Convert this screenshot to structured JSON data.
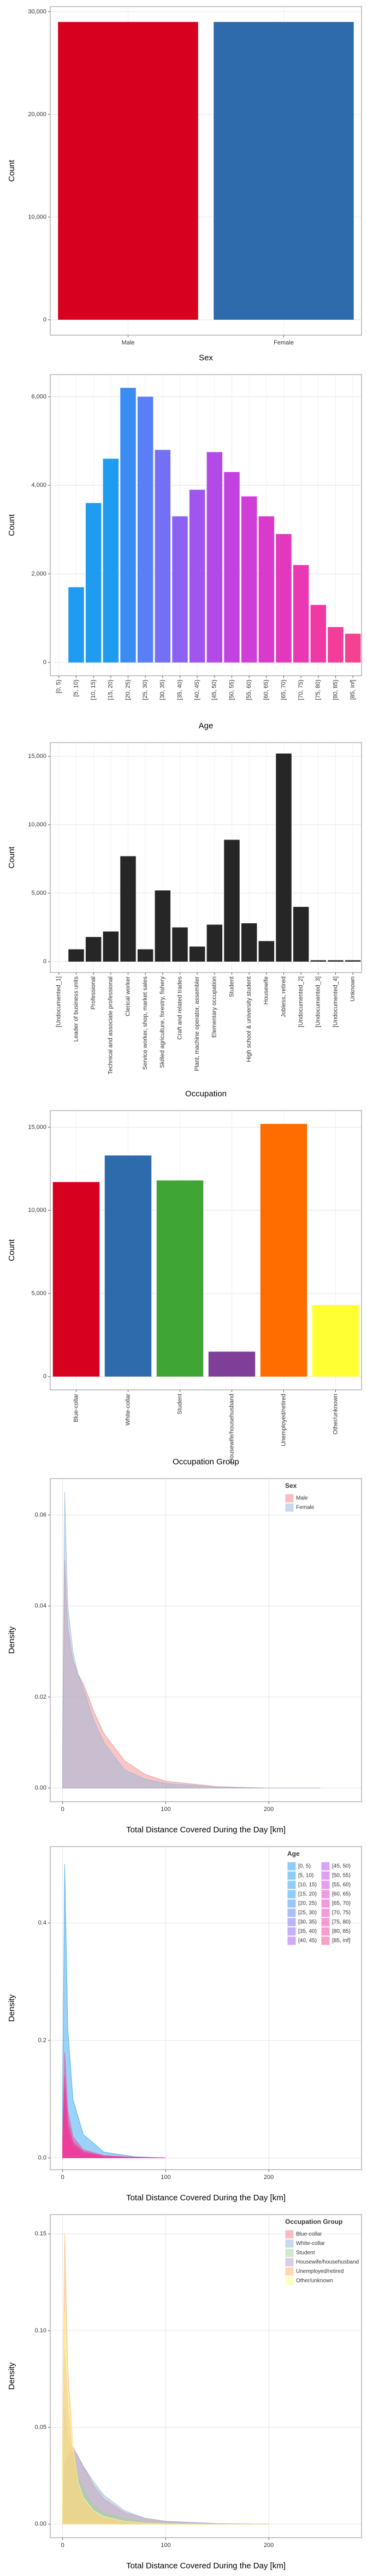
{
  "chart_data": [
    {
      "type": "bar",
      "x_label": "Sex",
      "y_label": "Count",
      "categories": [
        "Male",
        "Female"
      ],
      "values": [
        29000,
        29000
      ],
      "colors": [
        "#d7001f",
        "#2e6bad"
      ],
      "ylim": [
        -1500,
        30500
      ],
      "yticks": [
        0,
        {
          "value": 10000,
          "label": "10,000"
        },
        {
          "value": 20000,
          "label": "20,000"
        },
        {
          "value": 30000,
          "label": "30,000"
        }
      ],
      "grid": true
    },
    {
      "type": "bar",
      "x_label": "Age",
      "y_label": "Count",
      "categories": [
        "[0, 5)",
        "[5, 10)",
        "[10, 15)",
        "[15, 20)",
        "[20, 25)",
        "[25, 30)",
        "[30, 35)",
        "[35, 40)",
        "[40, 45)",
        "[45, 50)",
        "[50, 55)",
        "[55, 60)",
        "[60, 65)",
        "[65, 70)",
        "[70, 75)",
        "[75, 80)",
        "[80, 85)",
        "[85, Inf]"
      ],
      "values": [
        0,
        1700,
        3600,
        4600,
        6200,
        6000,
        4800,
        3300,
        3900,
        4750,
        4300,
        3750,
        3300,
        2900,
        2200,
        1300,
        800,
        650
      ],
      "colors": [
        "#1f9bf0",
        "#1f9bf0",
        "#1f9bf0",
        "#1f9bf0",
        "#3a8cf3",
        "#5a7ef5",
        "#7470f5",
        "#8c62f3",
        "#a055ee",
        "#b24ae8",
        "#c242e0",
        "#cf3ed6",
        "#da3acb",
        "#e338be",
        "#ea38b2",
        "#ef3aa6",
        "#f23d9b",
        "#f44190"
      ],
      "ylim": [
        -300,
        6500
      ],
      "yticks": [
        0,
        {
          "value": 2000,
          "label": "2,000"
        },
        {
          "value": 4000,
          "label": "4,000"
        },
        {
          "value": 6000,
          "label": "6,000"
        }
      ],
      "grid": true
    },
    {
      "type": "bar",
      "x_label": "Occupation",
      "y_label": "Count",
      "categories": [
        "[Undocumented_1]",
        "Leader of business units",
        "Professional",
        "Technical and associate professional",
        "Clerical worker",
        "Service worker, shop, market sales",
        "Skilled agriculture, forestry, fishery",
        "Craft and related trades",
        "Plant, machine operator, assembler",
        "Elementary occupation",
        "Student",
        "High school & university student",
        "Housewife",
        "Jobless, retired",
        "[Undocumented_2]",
        "[Undocumented_3]",
        "[Undocumented_4]",
        "Unknown"
      ],
      "values": [
        0,
        900,
        1800,
        2200,
        7700,
        900,
        5200,
        2500,
        1100,
        2700,
        8900,
        2800,
        1500,
        15200,
        4000,
        100,
        100,
        100
      ],
      "color": "#262626",
      "ylim": [
        -800,
        16000
      ],
      "yticks": [
        0,
        {
          "value": 5000,
          "label": "5,000"
        },
        {
          "value": 10000,
          "label": "10,000"
        },
        {
          "value": 15000,
          "label": "15,000"
        }
      ],
      "grid": true
    },
    {
      "type": "bar",
      "x_label": "Occupation Group",
      "y_label": "Count",
      "categories": [
        "Blue-collar",
        "White-collar",
        "Student",
        "Housewife/househusband",
        "Unemployed/retired",
        "Other/unknown"
      ],
      "values": [
        11700,
        13300,
        11800,
        1500,
        15200,
        4300
      ],
      "colors": [
        "#d7001f",
        "#2e6bad",
        "#3fa535",
        "#7f3f98",
        "#ff6d00",
        "#ffff33"
      ],
      "ylim": [
        -800,
        16000
      ],
      "yticks": [
        0,
        {
          "value": 5000,
          "label": "5,000"
        },
        {
          "value": 10000,
          "label": "10,000"
        },
        {
          "value": 15000,
          "label": "15,000"
        }
      ],
      "grid": true
    },
    {
      "type": "density",
      "x_label": "Total Distance Covered During the Day [km]",
      "y_label": "Density",
      "legend_title": "Sex",
      "x": [
        0,
        2,
        5,
        10,
        15,
        20,
        30,
        40,
        50,
        60,
        80,
        100,
        150,
        200,
        250
      ],
      "series": [
        {
          "name": "Male",
          "color": "#f08080",
          "values": [
            0.008,
            0.05,
            0.035,
            0.028,
            0.025,
            0.023,
            0.017,
            0.012,
            0.009,
            0.006,
            0.003,
            0.0015,
            0.0003,
            0,
            0
          ]
        },
        {
          "name": "Female",
          "color": "#8fb4d9",
          "values": [
            0.01,
            0.065,
            0.04,
            0.03,
            0.025,
            0.022,
            0.015,
            0.01,
            0.007,
            0.004,
            0.002,
            0.001,
            0.0002,
            0,
            0
          ]
        }
      ],
      "xlim": [
        -12,
        290
      ],
      "xticks": [
        0,
        100,
        200
      ],
      "ylim": [
        -0.003,
        0.068
      ],
      "yticks": [
        {
          "value": 0,
          "label": "0.00"
        },
        0.02,
        0.04,
        0.06
      ],
      "grid": true
    },
    {
      "type": "density",
      "x_label": "Total Distance Covered During the Day [km]",
      "y_label": "Density",
      "legend_title": "Age",
      "x": [
        0,
        2,
        5,
        10,
        20,
        40,
        70,
        100
      ],
      "series": [
        {
          "name": "[0, 5)",
          "color": "#1f9bf0",
          "values": [
            0.1,
            0.5,
            0.22,
            0.1,
            0.04,
            0.01,
            0.002,
            0
          ]
        },
        {
          "name": "[5, 10)",
          "color": "#1f9bf0",
          "values": [
            0.024,
            0.12,
            0.054,
            0.024,
            0.01,
            0.002,
            0.001,
            0
          ]
        },
        {
          "name": "[10, 15)",
          "color": "#1f9bf0",
          "values": [
            0.02,
            0.1,
            0.045,
            0.02,
            0.008,
            0.002,
            0.0005,
            0
          ]
        },
        {
          "name": "[15, 20)",
          "color": "#1f9bf0",
          "values": [
            0.018,
            0.09,
            0.04,
            0.018,
            0.007,
            0.002,
            0.0005,
            0
          ]
        },
        {
          "name": "[20, 25)",
          "color": "#3a8cf3",
          "values": [
            0.02,
            0.1,
            0.045,
            0.02,
            0.008,
            0.002,
            0.0005,
            0
          ]
        },
        {
          "name": "[25, 30)",
          "color": "#5a7ef5",
          "values": [
            0.016,
            0.08,
            0.036,
            0.016,
            0.006,
            0.002,
            0.0004,
            0
          ]
        },
        {
          "name": "[30, 35)",
          "color": "#7470f5",
          "values": [
            0.016,
            0.08,
            0.036,
            0.016,
            0.006,
            0.002,
            0.0004,
            0
          ]
        },
        {
          "name": "[35, 40)",
          "color": "#8c62f3",
          "values": [
            0.018,
            0.09,
            0.04,
            0.018,
            0.007,
            0.002,
            0.0005,
            0
          ]
        },
        {
          "name": "[40, 45)",
          "color": "#a055ee",
          "values": [
            0.018,
            0.09,
            0.04,
            0.018,
            0.007,
            0.002,
            0.0005,
            0
          ]
        },
        {
          "name": "[45, 50)",
          "color": "#b24ae8",
          "values": [
            0.016,
            0.08,
            0.036,
            0.016,
            0.006,
            0.002,
            0.0004,
            0
          ]
        },
        {
          "name": "[50, 55)",
          "color": "#c242e0",
          "values": [
            0.016,
            0.08,
            0.036,
            0.016,
            0.006,
            0.002,
            0.0004,
            0
          ]
        },
        {
          "name": "[55, 60)",
          "color": "#cf3ed6",
          "values": [
            0.016,
            0.08,
            0.036,
            0.016,
            0.006,
            0.002,
            0.0004,
            0
          ]
        },
        {
          "name": "[60, 65)",
          "color": "#da3acb",
          "values": [
            0.016,
            0.08,
            0.036,
            0.016,
            0.006,
            0.002,
            0.0004,
            0
          ]
        },
        {
          "name": "[65, 70)",
          "color": "#e338be",
          "values": [
            0.018,
            0.09,
            0.04,
            0.018,
            0.007,
            0.002,
            0.0005,
            0
          ]
        },
        {
          "name": "[70, 75)",
          "color": "#ea38b2",
          "values": [
            0.02,
            0.1,
            0.045,
            0.02,
            0.008,
            0.002,
            0.0005,
            0
          ]
        },
        {
          "name": "[75, 80)",
          "color": "#ef3aa6",
          "values": [
            0.024,
            0.12,
            0.054,
            0.024,
            0.01,
            0.002,
            0.001,
            0
          ]
        },
        {
          "name": "[80, 85)",
          "color": "#f23d9b",
          "values": [
            0.028,
            0.14,
            0.063,
            0.028,
            0.011,
            0.003,
            0.001,
            0
          ]
        },
        {
          "name": "[85, Inf]",
          "color": "#f44190",
          "values": [
            0.036,
            0.18,
            0.08,
            0.036,
            0.014,
            0.004,
            0.001,
            0
          ]
        }
      ],
      "xlim": [
        -12,
        290
      ],
      "xticks": [
        0,
        100,
        200
      ],
      "ylim": [
        -0.02,
        0.53
      ],
      "yticks": [
        {
          "value": 0,
          "label": "0.0"
        },
        0.2,
        0.4
      ],
      "grid": true
    },
    {
      "type": "density",
      "x_label": "Total Distance Covered During the Day [km]",
      "y_label": "Density",
      "legend_title": "Occupation Group",
      "x": [
        0,
        2,
        5,
        10,
        15,
        20,
        30,
        40,
        60,
        80,
        100,
        150,
        200
      ],
      "series": [
        {
          "name": "Blue-collar",
          "color": "#f08080",
          "values": [
            0.01,
            0.03,
            0.035,
            0.04,
            0.035,
            0.03,
            0.02,
            0.013,
            0.006,
            0.003,
            0.0015,
            0.0003,
            0
          ]
        },
        {
          "name": "White-collar",
          "color": "#8fb4d9",
          "values": [
            0.01,
            0.03,
            0.035,
            0.038,
            0.035,
            0.03,
            0.022,
            0.015,
            0.007,
            0.003,
            0.0015,
            0.0003,
            0
          ]
        },
        {
          "name": "Student",
          "color": "#9fd39a",
          "values": [
            0.02,
            0.06,
            0.045,
            0.035,
            0.025,
            0.018,
            0.01,
            0.006,
            0.003,
            0.001,
            0.0005,
            0.0001,
            0
          ]
        },
        {
          "name": "Housewife/househusband",
          "color": "#b99ac8",
          "values": [
            0.03,
            0.09,
            0.06,
            0.035,
            0.02,
            0.012,
            0.006,
            0.003,
            0.001,
            0.0005,
            0.0002,
            0,
            0
          ]
        },
        {
          "name": "Unemployed/retired",
          "color": "#ffb066",
          "values": [
            0.04,
            0.15,
            0.08,
            0.04,
            0.02,
            0.012,
            0.006,
            0.003,
            0.001,
            0.0005,
            0.0002,
            0,
            0
          ]
        },
        {
          "name": "Other/unknown",
          "color": "#ffff8a",
          "values": [
            0.03,
            0.11,
            0.07,
            0.04,
            0.022,
            0.014,
            0.007,
            0.004,
            0.0015,
            0.0006,
            0.0002,
            0,
            0
          ]
        }
      ],
      "xlim": [
        -12,
        290
      ],
      "xticks": [
        0,
        100,
        200
      ],
      "ylim": [
        -0.007,
        0.16
      ],
      "yticks": [
        {
          "value": 0,
          "label": "0.00"
        },
        0.05,
        {
          "value": 0.1,
          "label": "0.10"
        },
        0.15
      ],
      "grid": true
    }
  ]
}
